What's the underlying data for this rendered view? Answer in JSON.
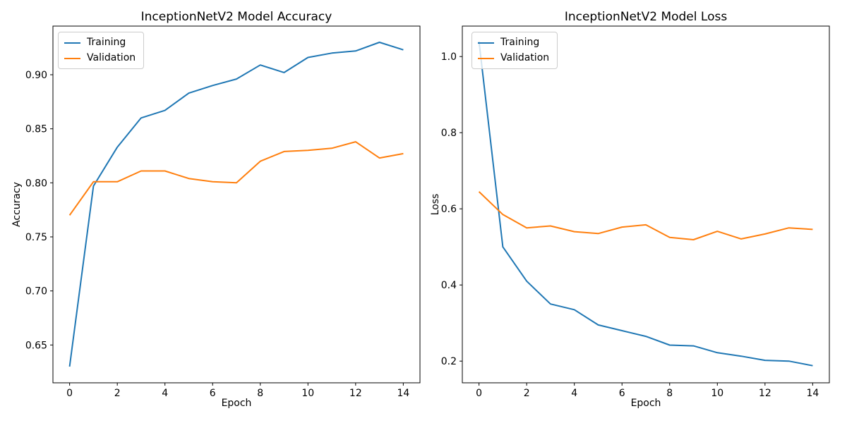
{
  "figure": {
    "background": "#ffffff"
  },
  "chart_data": [
    {
      "type": "line",
      "title": "InceptionNetV2 Model Accuracy",
      "xlabel": "Epoch",
      "ylabel": "Accuracy",
      "x": [
        0,
        1,
        2,
        3,
        4,
        5,
        6,
        7,
        8,
        9,
        10,
        11,
        12,
        13,
        14
      ],
      "series": [
        {
          "name": "Training",
          "color": "#1f77b4",
          "values": [
            0.63,
            0.797,
            0.833,
            0.86,
            0.867,
            0.883,
            0.89,
            0.896,
            0.909,
            0.902,
            0.916,
            0.92,
            0.922,
            0.93,
            0.923
          ]
        },
        {
          "name": "Validation",
          "color": "#ff7f0e",
          "values": [
            0.77,
            0.801,
            0.801,
            0.811,
            0.811,
            0.804,
            0.801,
            0.8,
            0.82,
            0.829,
            0.83,
            0.832,
            0.838,
            0.823,
            0.827
          ]
        }
      ],
      "xlim": [
        -0.7,
        14.7
      ],
      "ylim": [
        0.615,
        0.945
      ],
      "xticks": [
        0,
        2,
        4,
        6,
        8,
        10,
        12,
        14
      ],
      "xtick_labels": [
        "0",
        "2",
        "4",
        "6",
        "8",
        "10",
        "12",
        "14"
      ],
      "yticks": [
        0.65,
        0.7,
        0.75,
        0.8,
        0.85,
        0.9
      ],
      "ytick_labels": [
        "0.65",
        "0.70",
        "0.75",
        "0.80",
        "0.85",
        "0.90"
      ],
      "grid": false,
      "legend_position": "upper left"
    },
    {
      "type": "line",
      "title": "InceptionNetV2 Model Loss",
      "xlabel": "Epoch",
      "ylabel": "Loss",
      "x": [
        0,
        1,
        2,
        3,
        4,
        5,
        6,
        7,
        8,
        9,
        10,
        11,
        12,
        13,
        14
      ],
      "series": [
        {
          "name": "Training",
          "color": "#1f77b4",
          "values": [
            1.04,
            0.5,
            0.41,
            0.35,
            0.335,
            0.295,
            0.28,
            0.265,
            0.242,
            0.24,
            0.222,
            0.213,
            0.202,
            0.2,
            0.188
          ]
        },
        {
          "name": "Validation",
          "color": "#ff7f0e",
          "values": [
            0.645,
            0.585,
            0.55,
            0.555,
            0.54,
            0.535,
            0.552,
            0.558,
            0.525,
            0.519,
            0.541,
            0.521,
            0.534,
            0.55,
            0.546
          ]
        }
      ],
      "xlim": [
        -0.7,
        14.7
      ],
      "ylim": [
        0.143,
        1.08
      ],
      "xticks": [
        0,
        2,
        4,
        6,
        8,
        10,
        12,
        14
      ],
      "xtick_labels": [
        "0",
        "2",
        "4",
        "6",
        "8",
        "10",
        "12",
        "14"
      ],
      "yticks": [
        0.2,
        0.4,
        0.6,
        0.8,
        1.0
      ],
      "ytick_labels": [
        "0.2",
        "0.4",
        "0.6",
        "0.8",
        "1.0"
      ],
      "grid": false,
      "legend_position": "upper left"
    }
  ]
}
